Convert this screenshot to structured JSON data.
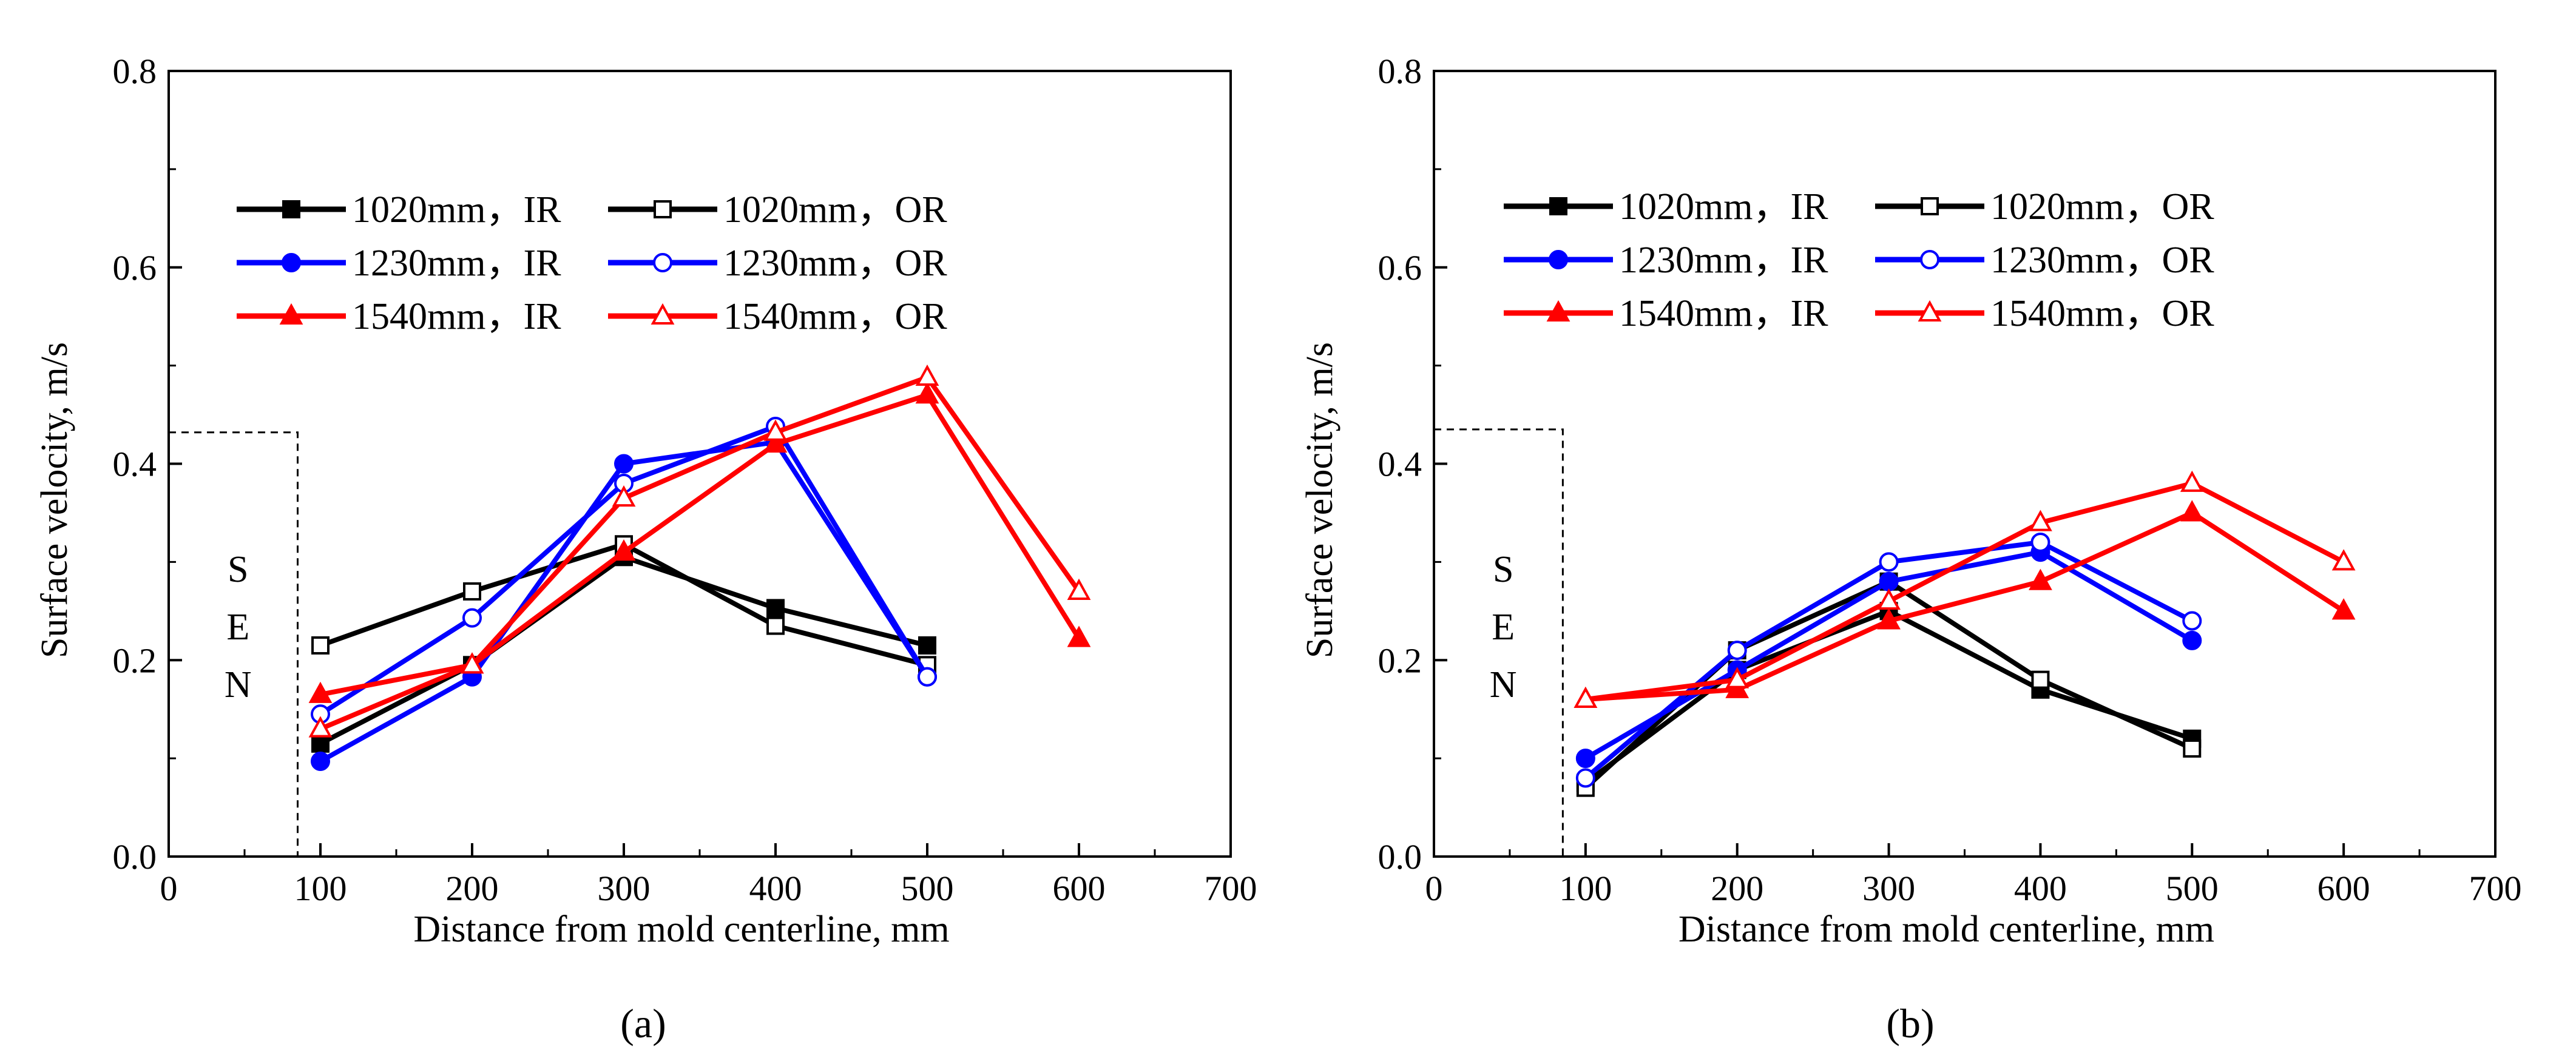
{
  "figure": {
    "panel_labels": [
      "(a)",
      "(b)"
    ]
  },
  "chart_data": [
    {
      "type": "line",
      "panel": "a",
      "xlabel": "Distance from mold centerline, mm",
      "ylabel": "Surface  velocity, m/s",
      "xlim": [
        0,
        700
      ],
      "ylim": [
        0.0,
        0.8
      ],
      "xticks": [
        0,
        100,
        200,
        300,
        400,
        500,
        600,
        700
      ],
      "yticks": [
        0.0,
        0.2,
        0.4,
        0.6,
        0.8
      ],
      "xtick_labels": [
        "0",
        "100",
        "200",
        "300",
        "400",
        "500",
        "600",
        "700"
      ],
      "ytick_labels": [
        "0.0",
        "0.2",
        "0.4",
        "0.6",
        "0.8"
      ],
      "annotation": {
        "letters": [
          "S",
          "E",
          "N"
        ],
        "boundary_x": 85,
        "boundary_y": 0.432
      },
      "legend_position": "upper-left",
      "series": [
        {
          "name": "1020mm，IR",
          "color": "#000000",
          "marker": "square",
          "filled": true,
          "x": [
            100,
            200,
            300,
            400,
            500
          ],
          "values": [
            0.115,
            0.195,
            0.305,
            0.253,
            0.215
          ]
        },
        {
          "name": "1020mm，OR",
          "color": "#000000",
          "marker": "square",
          "filled": false,
          "x": [
            100,
            200,
            300,
            400,
            500
          ],
          "values": [
            0.215,
            0.27,
            0.318,
            0.235,
            0.195
          ]
        },
        {
          "name": "1230mm，IR",
          "color": "#0000ff",
          "marker": "circle",
          "filled": true,
          "x": [
            100,
            200,
            300,
            400,
            500
          ],
          "values": [
            0.097,
            0.183,
            0.4,
            0.422,
            0.183
          ]
        },
        {
          "name": "1230mm，OR",
          "color": "#0000ff",
          "marker": "circle",
          "filled": false,
          "x": [
            100,
            200,
            300,
            400,
            500
          ],
          "values": [
            0.145,
            0.243,
            0.38,
            0.438,
            0.183
          ]
        },
        {
          "name": "1540mm，IR",
          "color": "#ff0000",
          "marker": "triangle",
          "filled": true,
          "x": [
            100,
            200,
            300,
            400,
            500,
            600
          ],
          "values": [
            0.165,
            0.195,
            0.31,
            0.42,
            0.47,
            0.222
          ]
        },
        {
          "name": "1540mm，OR",
          "color": "#ff0000",
          "marker": "triangle",
          "filled": false,
          "x": [
            100,
            200,
            300,
            400,
            500,
            600
          ],
          "values": [
            0.13,
            0.195,
            0.365,
            0.432,
            0.488,
            0.27
          ]
        }
      ]
    },
    {
      "type": "line",
      "panel": "b",
      "xlabel": "Distance from mold centerline, mm",
      "ylabel": "Surface  velocity, m/s",
      "xlim": [
        0,
        700
      ],
      "ylim": [
        0.0,
        0.8
      ],
      "xticks": [
        0,
        100,
        200,
        300,
        400,
        500,
        600,
        700
      ],
      "yticks": [
        0.0,
        0.2,
        0.4,
        0.6,
        0.8
      ],
      "xtick_labels": [
        "0",
        "100",
        "200",
        "300",
        "400",
        "500",
        "600",
        "700"
      ],
      "ytick_labels": [
        "0.0",
        "0.2",
        "0.4",
        "0.6",
        "0.8"
      ],
      "annotation": {
        "letters": [
          "S",
          "E",
          "N"
        ],
        "boundary_x": 85,
        "boundary_y": 0.435
      },
      "legend_position": "upper-left",
      "series": [
        {
          "name": "1020mm，IR",
          "color": "#000000",
          "marker": "square",
          "filled": true,
          "x": [
            100,
            200,
            300,
            400,
            500
          ],
          "values": [
            0.075,
            0.19,
            0.25,
            0.17,
            0.12
          ]
        },
        {
          "name": "1020mm，OR",
          "color": "#000000",
          "marker": "square",
          "filled": false,
          "x": [
            100,
            200,
            300,
            400,
            500
          ],
          "values": [
            0.07,
            0.21,
            0.28,
            0.18,
            0.11
          ]
        },
        {
          "name": "1230mm，IR",
          "color": "#0000ff",
          "marker": "circle",
          "filled": true,
          "x": [
            100,
            200,
            300,
            400,
            500
          ],
          "values": [
            0.1,
            0.19,
            0.28,
            0.31,
            0.22
          ]
        },
        {
          "name": "1230mm，OR",
          "color": "#0000ff",
          "marker": "circle",
          "filled": false,
          "x": [
            100,
            200,
            300,
            400,
            500
          ],
          "values": [
            0.08,
            0.21,
            0.3,
            0.32,
            0.24
          ]
        },
        {
          "name": "1540mm，IR",
          "color": "#ff0000",
          "marker": "triangle",
          "filled": true,
          "x": [
            100,
            200,
            300,
            400,
            500,
            600
          ],
          "values": [
            0.16,
            0.17,
            0.24,
            0.28,
            0.35,
            0.25
          ]
        },
        {
          "name": "1540mm，OR",
          "color": "#ff0000",
          "marker": "triangle",
          "filled": false,
          "x": [
            100,
            200,
            300,
            400,
            500,
            600
          ],
          "values": [
            0.16,
            0.18,
            0.26,
            0.34,
            0.38,
            0.3
          ]
        }
      ]
    }
  ]
}
